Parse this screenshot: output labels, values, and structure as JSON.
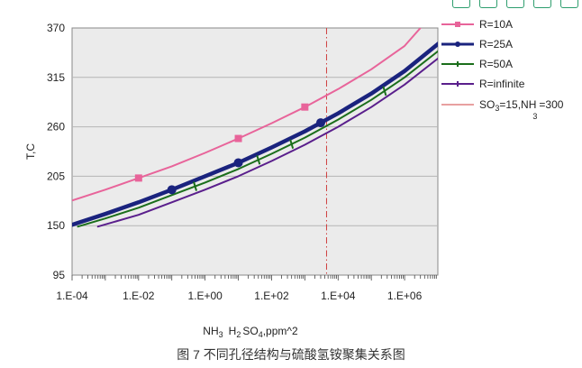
{
  "toolbar": {
    "icons": [
      "copy-icon",
      "expand-icon",
      "share-icon",
      "download-icon",
      "settings-icon"
    ]
  },
  "caption": "图 7 不同孔径结构与硫酸氢铵聚集关系图",
  "chart_data": {
    "type": "line",
    "title": "",
    "ylabel": "T,C",
    "xlabel_parts": [
      "NH",
      "3",
      "H",
      "2",
      "SO",
      "4",
      ",ppm^2"
    ],
    "x_scale": "log",
    "xlim": [
      0.0001,
      10000000
    ],
    "ylim": [
      95,
      370
    ],
    "yticks": [
      95,
      150,
      205,
      260,
      315,
      370
    ],
    "xticks": [
      {
        "value": 0.0001,
        "label": "1.E-04"
      },
      {
        "value": 0.01,
        "label": "1.E-02"
      },
      {
        "value": 1,
        "label": "1.E+00"
      },
      {
        "value": 100,
        "label": "1.E+02"
      },
      {
        "value": 10000,
        "label": "1.E+04"
      },
      {
        "value": 1000000,
        "label": "1.E+06"
      }
    ],
    "grid": "horizontal",
    "legend_position": "right",
    "series": [
      {
        "name": "R=10A",
        "color": "#e8649a",
        "width": 2,
        "marker": "square",
        "points": [
          [
            0.0001,
            178
          ],
          [
            0.001,
            190
          ],
          [
            0.01,
            203
          ],
          [
            0.1,
            216
          ],
          [
            1,
            231
          ],
          [
            10,
            247
          ],
          [
            100,
            264
          ],
          [
            1000,
            282
          ],
          [
            10000,
            302
          ],
          [
            100000,
            324
          ],
          [
            1000000,
            350
          ],
          [
            3000000,
            370
          ]
        ],
        "marker_x": [
          0.01,
          10,
          1000
        ]
      },
      {
        "name": "R=25A",
        "color": "#1a237e",
        "width": 4.5,
        "marker": "circle",
        "points": [
          [
            0.0001,
            151
          ],
          [
            0.001,
            163
          ],
          [
            0.01,
            176
          ],
          [
            0.1,
            190
          ],
          [
            1,
            205
          ],
          [
            10,
            220
          ],
          [
            100,
            237
          ],
          [
            1000,
            255
          ],
          [
            10000,
            275
          ],
          [
            100000,
            297
          ],
          [
            1000000,
            322
          ],
          [
            10000000,
            352
          ],
          [
            35000000,
            370
          ]
        ],
        "marker_x": [
          0.1,
          10,
          3000
        ]
      },
      {
        "name": "R=50A",
        "color": "#1b6e1b",
        "width": 2,
        "marker": "cross",
        "points": [
          [
            0.00015,
            149
          ],
          [
            0.001,
            158
          ],
          [
            0.01,
            170
          ],
          [
            0.1,
            184
          ],
          [
            1,
            198
          ],
          [
            10,
            213
          ],
          [
            100,
            230
          ],
          [
            1000,
            248
          ],
          [
            10000,
            268
          ],
          [
            100000,
            290
          ],
          [
            1000000,
            315
          ],
          [
            10000000,
            344
          ],
          [
            40000000,
            365
          ]
        ],
        "marker_x": [
          0.5,
          40,
          400,
          250000
        ]
      },
      {
        "name": "R=infinite",
        "color": "#5a1f8c",
        "width": 2,
        "marker": "cross",
        "points": [
          [
            0.0006,
            149
          ],
          [
            0.01,
            162
          ],
          [
            0.1,
            176
          ],
          [
            1,
            190
          ],
          [
            10,
            205
          ],
          [
            100,
            222
          ],
          [
            1000,
            240
          ],
          [
            10000,
            260
          ],
          [
            100000,
            282
          ],
          [
            1000000,
            307
          ],
          [
            10000000,
            336
          ],
          [
            50000000,
            360
          ]
        ],
        "marker_x": []
      }
    ],
    "reference_line": {
      "label_parts": [
        "SO",
        "3",
        "=15,NH",
        "3",
        "=300"
      ],
      "x": 4500,
      "color": "#d04040",
      "style": "dashed"
    }
  }
}
